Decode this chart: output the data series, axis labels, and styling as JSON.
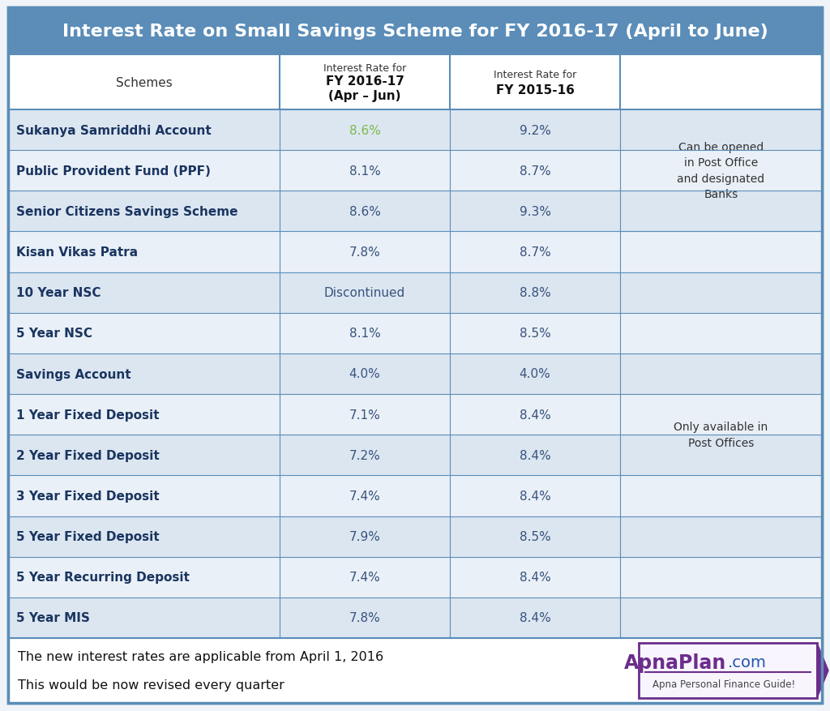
{
  "title": "Interest Rate on Small Savings Scheme for FY 2016-17 (April to June)",
  "title_bg": "#5b8db8",
  "title_color": "#ffffff",
  "header_col1": "Schemes",
  "header_col2_line1": "Interest Rate for",
  "header_col2_line2": "FY 2016-17",
  "header_col2_line3": "(Apr – Jun)",
  "header_col3_line1": "Interest Rate for",
  "header_col3_line2": "FY 2015-16",
  "rows": [
    [
      "Sukanya Samriddhi Account",
      "8.6%",
      "9.2%"
    ],
    [
      "Public Provident Fund (PPF)",
      "8.1%",
      "8.7%"
    ],
    [
      "Senior Citizens Savings Scheme",
      "8.6%",
      "9.3%"
    ],
    [
      "Kisan Vikas Patra",
      "7.8%",
      "8.7%"
    ],
    [
      "10 Year NSC",
      "Discontinued",
      "8.8%"
    ],
    [
      "5 Year NSC",
      "8.1%",
      "8.5%"
    ],
    [
      "Savings Account",
      "4.0%",
      "4.0%"
    ],
    [
      "1 Year Fixed Deposit",
      "7.1%",
      "8.4%"
    ],
    [
      "2 Year Fixed Deposit",
      "7.2%",
      "8.4%"
    ],
    [
      "3 Year Fixed Deposit",
      "7.4%",
      "8.4%"
    ],
    [
      "5 Year Fixed Deposit",
      "7.9%",
      "8.5%"
    ],
    [
      "5 Year Recurring Deposit",
      "7.4%",
      "8.4%"
    ],
    [
      "5 Year MIS",
      "7.8%",
      "8.4%"
    ]
  ],
  "col4_group1": "Can be opened\nin Post Office\nand designated\nBanks",
  "col4_group2": "Only available in\nPost Offices",
  "row_bg_light": "#dce6f1",
  "row_bg_lighter": "#eaf0f7",
  "header_bg": "#ffffff",
  "border_color": "#5b8db8",
  "scheme_text_color": "#1a3560",
  "value1_color": "#7cba4a",
  "value_color": "#37537d",
  "footer_bg": "#ffffff",
  "footer_text1": "The new interest rates are applicable from April 1, 2016",
  "footer_text2": "This would be now revised every quarter",
  "apnaplan_box_border": "#6b2d8b",
  "apnaplan_bg": "#f8f5ff",
  "apnaplan_text_color": "#6b2d8b",
  "apnaplan_com_color": "#2255aa",
  "apnaplan_tagline": "Apna Personal Finance Guide!",
  "outer_border_color": "#5b8db8",
  "outer_bg": "#f0f4f8"
}
